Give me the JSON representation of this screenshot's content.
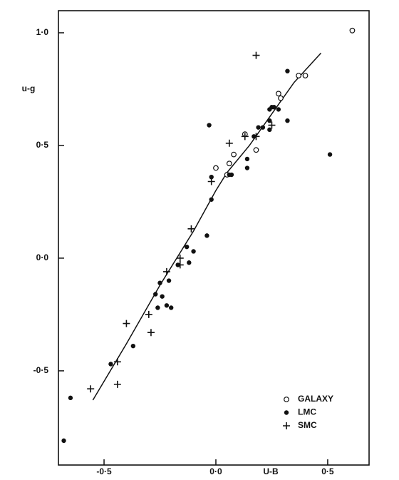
{
  "chart_data": {
    "type": "scatter",
    "x_label": "U-B",
    "y_label": "u-g",
    "xlim": [
      -0.704,
      0.685
    ],
    "ylim": [
      -0.918,
      1.098
    ],
    "xticks": [
      {
        "value": -0.5,
        "label": "-0·5"
      },
      {
        "value": 0,
        "label": "0·0"
      },
      {
        "value": 0.5,
        "label": "0·5"
      }
    ],
    "yticks": [
      {
        "value": -0.5,
        "label": "-0·5"
      },
      {
        "value": 0,
        "label": "0·0"
      },
      {
        "value": 0.5,
        "label": "0·5"
      },
      {
        "value": 1,
        "label": "1·0"
      }
    ],
    "legend": "lower right",
    "series": [
      {
        "name": "GALAXY",
        "color": "#111111",
        "marker": "open-circle",
        "x": [
          0.61,
          0.37,
          0.4,
          0.28,
          0.29,
          0.18,
          0.13,
          0.08,
          0.06,
          0.05,
          0.0
        ],
        "values": [
          1.01,
          0.81,
          0.81,
          0.73,
          0.71,
          0.48,
          0.55,
          0.46,
          0.42,
          0.37,
          0.4
        ]
      },
      {
        "name": "LMC",
        "color": "#111111",
        "marker": "filled-circle",
        "x": [
          0.32,
          0.32,
          0.28,
          0.25,
          0.26,
          0.24,
          0.24,
          0.24,
          0.21,
          0.19,
          0.17,
          -0.03,
          0.14,
          0.14,
          0.07,
          0.06,
          0.51,
          -0.02,
          -0.02,
          -0.04,
          -0.13,
          -0.1,
          -0.12,
          -0.17,
          -0.21,
          -0.25,
          -0.27,
          -0.24,
          -0.22,
          -0.2,
          -0.26,
          -0.37,
          -0.47,
          -0.65,
          -0.68
        ],
        "values": [
          0.83,
          0.61,
          0.66,
          0.67,
          0.67,
          0.66,
          0.61,
          0.57,
          0.58,
          0.58,
          0.54,
          0.59,
          0.44,
          0.4,
          0.37,
          0.37,
          0.46,
          0.36,
          0.26,
          0.1,
          0.05,
          0.03,
          -0.02,
          -0.03,
          -0.1,
          -0.11,
          -0.16,
          -0.17,
          -0.21,
          -0.22,
          -0.22,
          -0.39,
          -0.47,
          -0.62,
          -0.81
        ]
      },
      {
        "name": "SMC",
        "color": "#111111",
        "marker": "plus",
        "x": [
          0.18,
          0.25,
          0.18,
          0.13,
          0.06,
          -0.02,
          -0.11,
          -0.16,
          -0.16,
          -0.22,
          -0.3,
          -0.29,
          -0.4,
          -0.44,
          -0.44,
          -0.56
        ],
        "values": [
          0.9,
          0.59,
          0.54,
          0.54,
          0.51,
          0.34,
          0.13,
          0.0,
          -0.03,
          -0.06,
          -0.25,
          -0.33,
          -0.29,
          -0.46,
          -0.56,
          -0.58
        ]
      }
    ],
    "curve": {
      "x": [
        -0.55,
        -0.4,
        -0.25,
        -0.1,
        0.0,
        0.05,
        0.15,
        0.25,
        0.35,
        0.47
      ],
      "y": [
        -0.63,
        -0.38,
        -0.12,
        0.12,
        0.3,
        0.38,
        0.5,
        0.64,
        0.78,
        0.91
      ]
    }
  }
}
